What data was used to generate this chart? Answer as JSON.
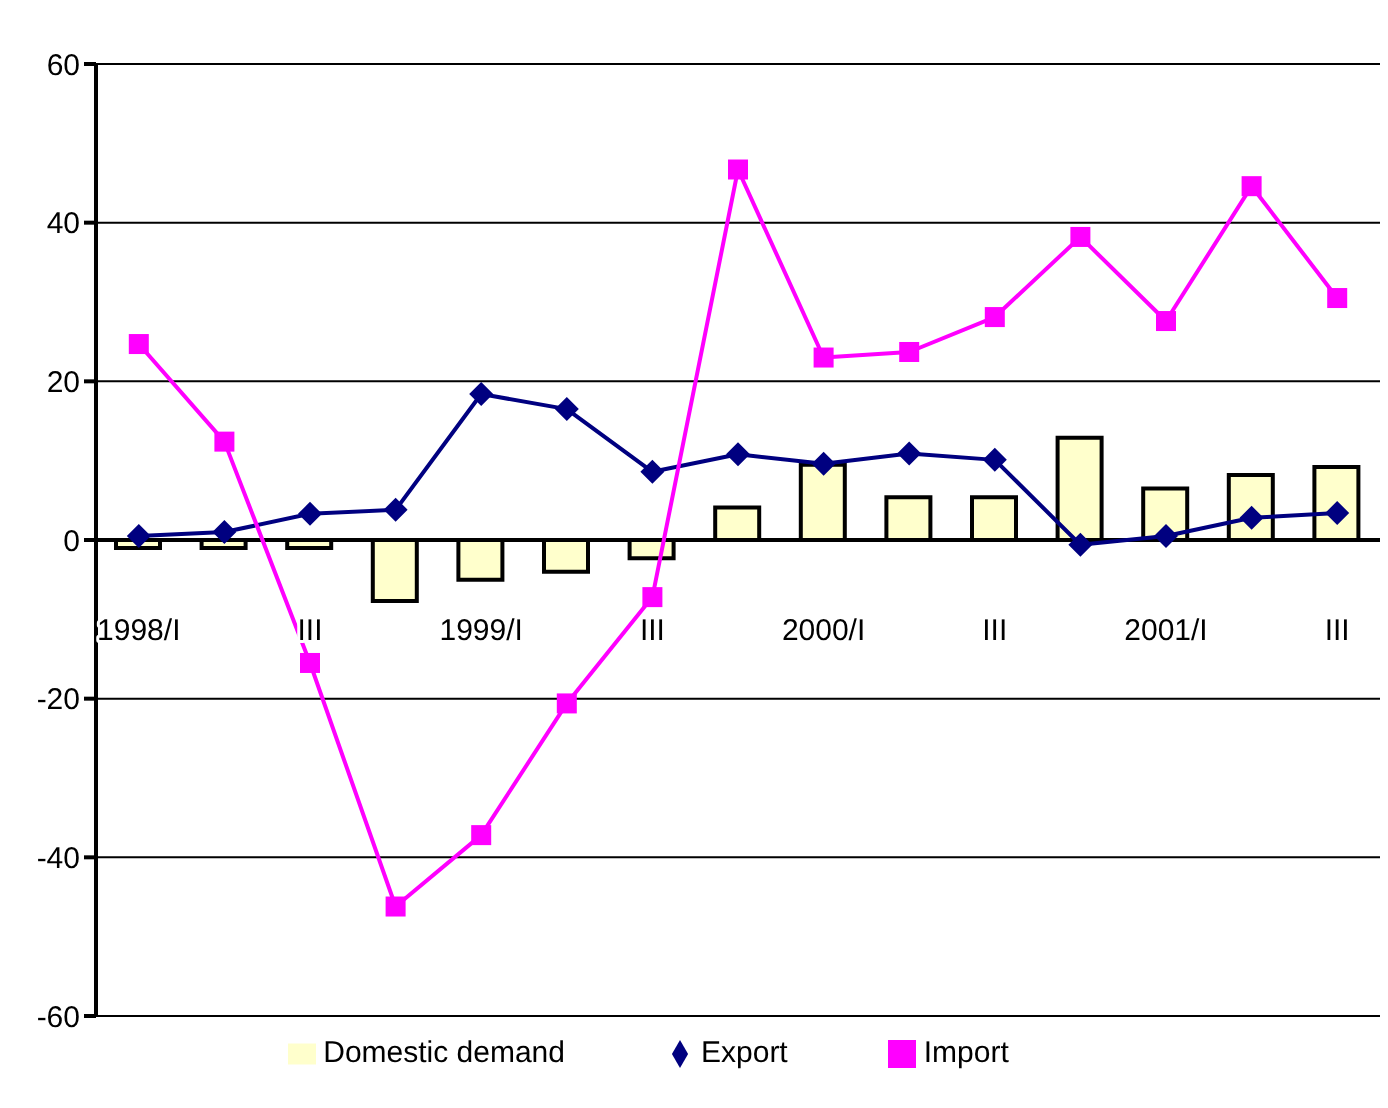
{
  "chart_data": {
    "type": "bar",
    "categories": [
      "1998/I",
      null,
      "III",
      null,
      "1999/I",
      null,
      "III",
      null,
      "2000/I",
      null,
      "III",
      null,
      "2001/I",
      null,
      "III"
    ],
    "series": [
      {
        "name": "Domestic demand",
        "color": "#ffffcc",
        "values": [
          -1,
          -1,
          -1,
          -7.7,
          -5,
          -4,
          -2.3,
          4.1,
          9.5,
          5.4,
          5.4,
          12.9,
          6.5,
          8.2,
          9.2
        ]
      },
      {
        "name": "Export",
        "type": "line",
        "color": "#000080",
        "marker": "diamond",
        "values": [
          0.5,
          1,
          3.3,
          3.8,
          18.4,
          16.5,
          8.6,
          10.8,
          9.6,
          10.9,
          10.1,
          -0.6,
          0.5,
          2.8,
          3.4
        ]
      },
      {
        "name": "Import",
        "type": "line",
        "color": "#ff00ff",
        "marker": "square",
        "values": [
          24.7,
          12.4,
          -15.5,
          -46.2,
          -37.2,
          -20.6,
          -7.2,
          46.7,
          23,
          23.7,
          28.1,
          38.2,
          27.6,
          44.6,
          30.5
        ]
      }
    ],
    "ylim": [
      -60,
      60
    ],
    "yticks": [
      -60,
      -40,
      -20,
      0,
      20,
      40,
      60
    ],
    "grid": "y",
    "legend": "bottom"
  }
}
